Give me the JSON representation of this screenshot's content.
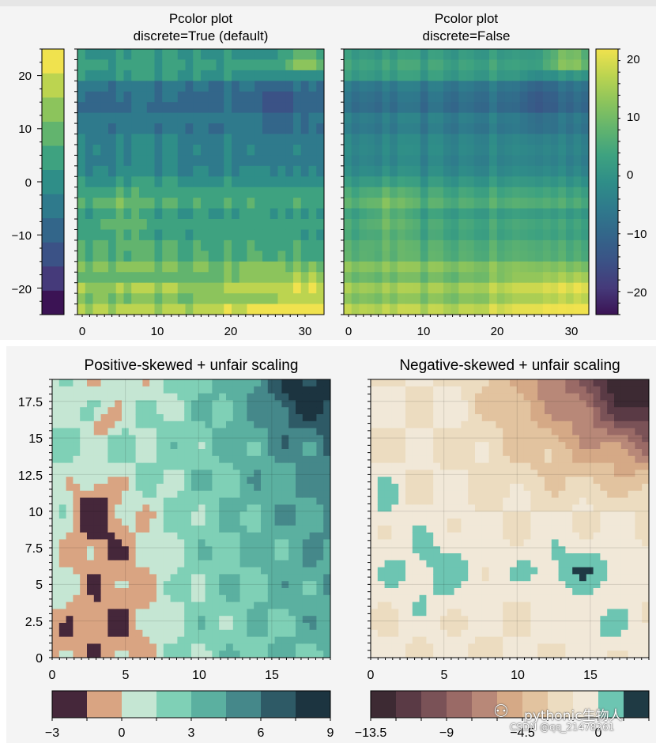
{
  "chart_data": [
    {
      "type": "heatmap",
      "title": "Pcolor plot",
      "subtitle": "discrete=True (default)",
      "xlim": [
        0,
        32
      ],
      "ylim": [
        -25,
        25
      ],
      "x_ticks": [
        "0",
        "10",
        "20",
        "30"
      ],
      "colorbar": {
        "placement": "left",
        "ticks": [
          "20",
          "10",
          "0",
          "−10",
          "−20"
        ],
        "range": [
          -25,
          25
        ],
        "discrete": true,
        "colors": [
          "#3b1354",
          "#453a7a",
          "#3b5286",
          "#33668a",
          "#2f7a8c",
          "#2f8e88",
          "#3ea280",
          "#62b46e",
          "#8cc45c",
          "#bcd450",
          "#f0e24e"
        ]
      }
    },
    {
      "type": "heatmap",
      "title": "Pcolor plot",
      "subtitle": "discrete=False",
      "xlim": [
        0,
        32
      ],
      "ylim": [
        -25,
        25
      ],
      "x_ticks": [
        "0",
        "10",
        "20",
        "30"
      ],
      "colorbar": {
        "placement": "right",
        "ticks": [
          "20",
          "10",
          "0",
          "−10",
          "−20"
        ],
        "range": [
          -24,
          22
        ],
        "discrete": false
      }
    },
    {
      "type": "area",
      "title": "Positive-skewed + unfair scaling",
      "xlim": [
        0,
        19
      ],
      "ylim": [
        0,
        19
      ],
      "x_ticks": [
        "0",
        "5",
        "10",
        "15"
      ],
      "y_ticks": [
        "0",
        "2.5",
        "5",
        "7.5",
        "10",
        "12.5",
        "15",
        "17.5"
      ],
      "grid": true,
      "colorbar": {
        "placement": "bottom",
        "ticks": [
          "−3",
          "0",
          "3",
          "6",
          "9"
        ],
        "range": [
          -3,
          9
        ],
        "levels": [
          -3,
          -1.5,
          0,
          1.5,
          3,
          4.5,
          6,
          7.5,
          9
        ],
        "colors": [
          "#45273a",
          "#d9a482",
          "#c5e6d3",
          "#7fd0b6",
          "#5bb0a0",
          "#45888a",
          "#2e5a66",
          "#1c3440"
        ]
      }
    },
    {
      "type": "area",
      "title": "Negative-skewed + unfair scaling",
      "xlim": [
        0,
        19
      ],
      "ylim": [
        0,
        19
      ],
      "x_ticks": [
        "0",
        "5",
        "10",
        "15"
      ],
      "grid": true,
      "colorbar": {
        "placement": "bottom",
        "ticks": [
          "−13.5",
          "−9",
          "−4.5",
          "0"
        ],
        "range": [
          -13.5,
          3
        ],
        "levels": [
          -13.5,
          -12,
          -10.5,
          -9,
          -7.5,
          -6,
          -4.5,
          -3,
          -1.5,
          0,
          1.5,
          3
        ],
        "colors": [
          "#3d2a33",
          "#5a3a45",
          "#7a5257",
          "#9a6a66",
          "#b88878",
          "#d5a986",
          "#e2c39f",
          "#ecdcc0",
          "#f1e8d8",
          "#6dc5b2",
          "#1f3a44"
        ]
      }
    }
  ],
  "watermark": {
    "line1": "pythonic生物人",
    "line2": "CSDN @qq_21478261"
  }
}
